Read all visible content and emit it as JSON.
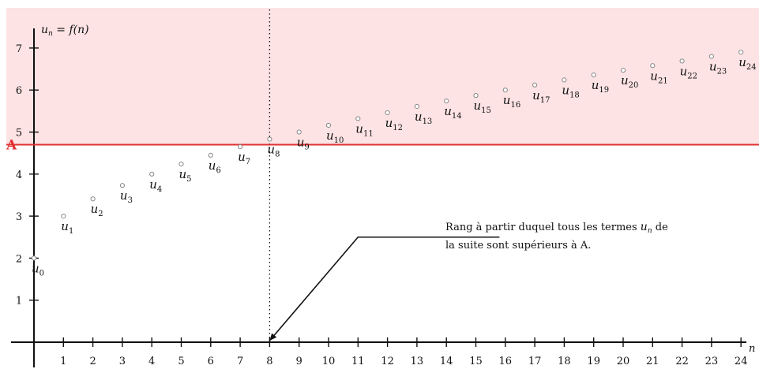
{
  "chart_data": {
    "type": "scatter",
    "ylabel": {
      "lhs": "u",
      "lhs_sub": "n",
      "rhs": "= f(n)"
    },
    "xlabel": "n",
    "xlim": [
      0,
      24
    ],
    "ylim": [
      0,
      7
    ],
    "x_ticks": [
      1,
      2,
      3,
      4,
      5,
      6,
      7,
      8,
      9,
      10,
      11,
      12,
      13,
      14,
      15,
      16,
      17,
      18,
      19,
      20,
      21,
      22,
      23,
      24
    ],
    "x_tick_labels": [
      "1",
      "2",
      "3",
      "4",
      "5",
      "6",
      "7",
      "8",
      "9",
      "10",
      "11",
      "12",
      "13",
      "14",
      "15",
      "16",
      "17",
      "18",
      "19",
      "20",
      "21",
      "22",
      "23",
      "24"
    ],
    "y_ticks": [
      1,
      2,
      3,
      4,
      5,
      6,
      7
    ],
    "y_tick_labels": [
      "1",
      "2",
      "3",
      "4",
      "5",
      "6",
      "7"
    ],
    "threshold": {
      "label": "A",
      "value": 4.7,
      "color": "#e03030",
      "region_color": "#fde3e4"
    },
    "vertical_marker": {
      "x": 8,
      "style": "dotted"
    },
    "point_color": "#888888",
    "points": [
      {
        "n": 0,
        "y": 2.0,
        "label": "u",
        "sub": "0"
      },
      {
        "n": 1,
        "y": 3.0,
        "label": "u",
        "sub": "1"
      },
      {
        "n": 2,
        "y": 3.41,
        "label": "u",
        "sub": "2"
      },
      {
        "n": 3,
        "y": 3.73,
        "label": "u",
        "sub": "3"
      },
      {
        "n": 4,
        "y": 4.0,
        "label": "u",
        "sub": "4"
      },
      {
        "n": 5,
        "y": 4.24,
        "label": "u",
        "sub": "5"
      },
      {
        "n": 6,
        "y": 4.45,
        "label": "u",
        "sub": "6"
      },
      {
        "n": 7,
        "y": 4.65,
        "label": "u",
        "sub": "7"
      },
      {
        "n": 8,
        "y": 4.83,
        "label": "u",
        "sub": "8"
      },
      {
        "n": 9,
        "y": 5.0,
        "label": "u",
        "sub": "9"
      },
      {
        "n": 10,
        "y": 5.16,
        "label": "u",
        "sub": "10"
      },
      {
        "n": 11,
        "y": 5.32,
        "label": "u",
        "sub": "11"
      },
      {
        "n": 12,
        "y": 5.46,
        "label": "u",
        "sub": "12"
      },
      {
        "n": 13,
        "y": 5.61,
        "label": "u",
        "sub": "13"
      },
      {
        "n": 14,
        "y": 5.74,
        "label": "u",
        "sub": "14"
      },
      {
        "n": 15,
        "y": 5.87,
        "label": "u",
        "sub": "15"
      },
      {
        "n": 16,
        "y": 6.0,
        "label": "u",
        "sub": "16"
      },
      {
        "n": 17,
        "y": 6.12,
        "label": "u",
        "sub": "17"
      },
      {
        "n": 18,
        "y": 6.24,
        "label": "u",
        "sub": "18"
      },
      {
        "n": 19,
        "y": 6.36,
        "label": "u",
        "sub": "19"
      },
      {
        "n": 20,
        "y": 6.47,
        "label": "u",
        "sub": "20"
      },
      {
        "n": 21,
        "y": 6.58,
        "label": "u",
        "sub": "21"
      },
      {
        "n": 22,
        "y": 6.69,
        "label": "u",
        "sub": "22"
      },
      {
        "n": 23,
        "y": 6.8,
        "label": "u",
        "sub": "23"
      },
      {
        "n": 24,
        "y": 6.9,
        "label": "u",
        "sub": "24"
      }
    ],
    "annotation": {
      "line1_pre": "Rang à partir duquel tous les termes ",
      "line1_math": "u",
      "line1_sub": "n",
      "line1_post": " de",
      "line2": "la suite sont supérieurs à A.",
      "target_n": 8,
      "target_y": 0,
      "knee_n": 11,
      "knee_y": 2.5,
      "end_n": 15.8,
      "end_y": 2.5
    }
  }
}
